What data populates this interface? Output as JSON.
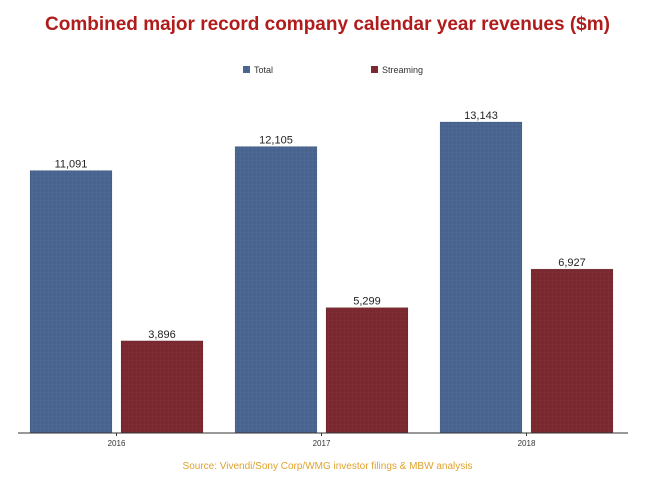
{
  "chart_data": {
    "type": "bar",
    "title": "Combined major record company calendar year revenues ($m)",
    "categories": [
      "2016",
      "2017",
      "2018"
    ],
    "series": [
      {
        "name": "Total",
        "values": [
          11091,
          12105,
          13143
        ],
        "labels": [
          "11,091",
          "12,105",
          "13,143"
        ],
        "color": "#4a6590"
      },
      {
        "name": "Streaming",
        "values": [
          3896,
          5299,
          6927
        ],
        "labels": [
          "3,896",
          "5,299",
          "6,927"
        ],
        "color": "#7a2a30"
      }
    ],
    "ylim": [
      0,
      15000
    ],
    "xlabel": "",
    "ylabel": "",
    "legend_position": "top-center",
    "grid": false,
    "source": "Source: Vivendi/Sony Corp/WMG investor filings & MBW analysis"
  },
  "colors": {
    "title": "#b01c1c",
    "source": "#e0a22e",
    "axis": "#333333"
  }
}
